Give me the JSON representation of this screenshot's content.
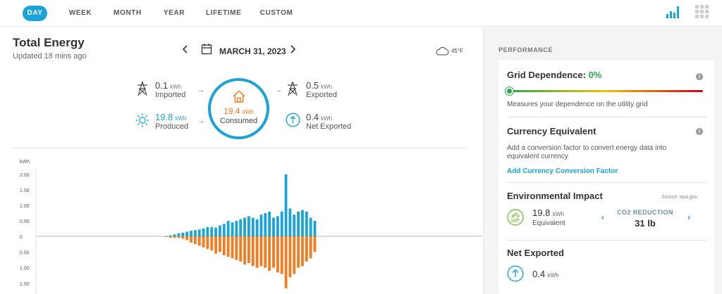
{
  "nav": {
    "tabs": [
      {
        "label": "DAY",
        "active": true
      },
      {
        "label": "WEEK",
        "active": false
      },
      {
        "label": "MONTH",
        "active": false
      },
      {
        "label": "YEAR",
        "active": false
      },
      {
        "label": "LIFETIME",
        "active": false
      },
      {
        "label": "CUSTOM",
        "active": false
      }
    ],
    "icons": [
      "bar-chart-icon",
      "grid-icon"
    ],
    "accent_color": "#1aa3d9"
  },
  "header": {
    "title": "Total Energy",
    "updated": "Updated 18 mins ago",
    "date": "MARCH 31, 2023",
    "weather": "45°F"
  },
  "flow": {
    "imported": {
      "value": "0.1",
      "unit": "kWh",
      "label": "Imported"
    },
    "produced": {
      "value": "19.8",
      "unit": "kWh",
      "label": "Produced"
    },
    "consumed": {
      "value": "19.4",
      "unit": "kWh",
      "label": "Consumed"
    },
    "exported": {
      "value": "0.5",
      "unit": "kWh",
      "label": "Exported"
    },
    "net_exported": {
      "value": "0.4",
      "unit": "kWh",
      "label": "Net Exported"
    }
  },
  "chart_data": {
    "type": "bar",
    "ylabel": "kWh",
    "yticks_top": [
      "2.00",
      "1.50",
      "1.00",
      "0.50",
      "0"
    ],
    "yticks_bottom": [
      "0.50",
      "1.00",
      "1.50"
    ],
    "ylim_top": [
      0,
      2.0
    ],
    "ylim_bottom": [
      0,
      1.5
    ],
    "series": [
      {
        "color": "#1aa3d9",
        "values": [
          0.01,
          0.03,
          0.06,
          0.1,
          0.12,
          0.15,
          0.18,
          0.2,
          0.22,
          0.25,
          0.3,
          0.3,
          0.28,
          0.35,
          0.4,
          0.5,
          0.45,
          0.5,
          0.55,
          0.6,
          0.65,
          0.6,
          0.55,
          0.7,
          0.75,
          0.8,
          0.6,
          0.65,
          0.8,
          2.0,
          0.9,
          0.7,
          0.8,
          0.85,
          0.8,
          0.6,
          0.5
        ]
      },
      {
        "color": "#f47b20",
        "values": [
          0.02,
          0.04,
          0.05,
          0.05,
          0.08,
          0.12,
          0.2,
          0.25,
          0.3,
          0.35,
          0.4,
          0.45,
          0.55,
          0.5,
          0.6,
          0.65,
          0.7,
          0.75,
          0.8,
          0.9,
          0.85,
          0.95,
          1.0,
          0.95,
          1.0,
          1.1,
          1.0,
          1.15,
          1.2,
          1.65,
          1.3,
          1.2,
          1.0,
          0.95,
          0.8,
          0.7,
          0.5
        ]
      }
    ],
    "series_colors_note": "",
    "legend": "none",
    "grid": false
  },
  "performance": {
    "heading": "PERFORMANCE",
    "grid_dependence": {
      "title": "Grid Dependence:",
      "value": "0%",
      "value_fraction": 0.0,
      "description": "Measures your dependence on the utility grid",
      "value_color": "#2aa84a"
    },
    "currency": {
      "title": "Currency Equivalent",
      "description_line1": "Add a conversion factor to convert energy data into",
      "description_line2": "equivalent currency",
      "link": "Add Currency Conversion Factor"
    },
    "environment": {
      "title": "Environmental Impact",
      "source": "Source: epa.gov",
      "value": "19.8",
      "unit": "kWh",
      "label": "Equivalent",
      "co2_label": "CO2 REDUCTION",
      "co2_value": "31 lb"
    },
    "net_exported": {
      "title": "Net Exported",
      "value": "0.4",
      "unit": "kWh"
    }
  }
}
